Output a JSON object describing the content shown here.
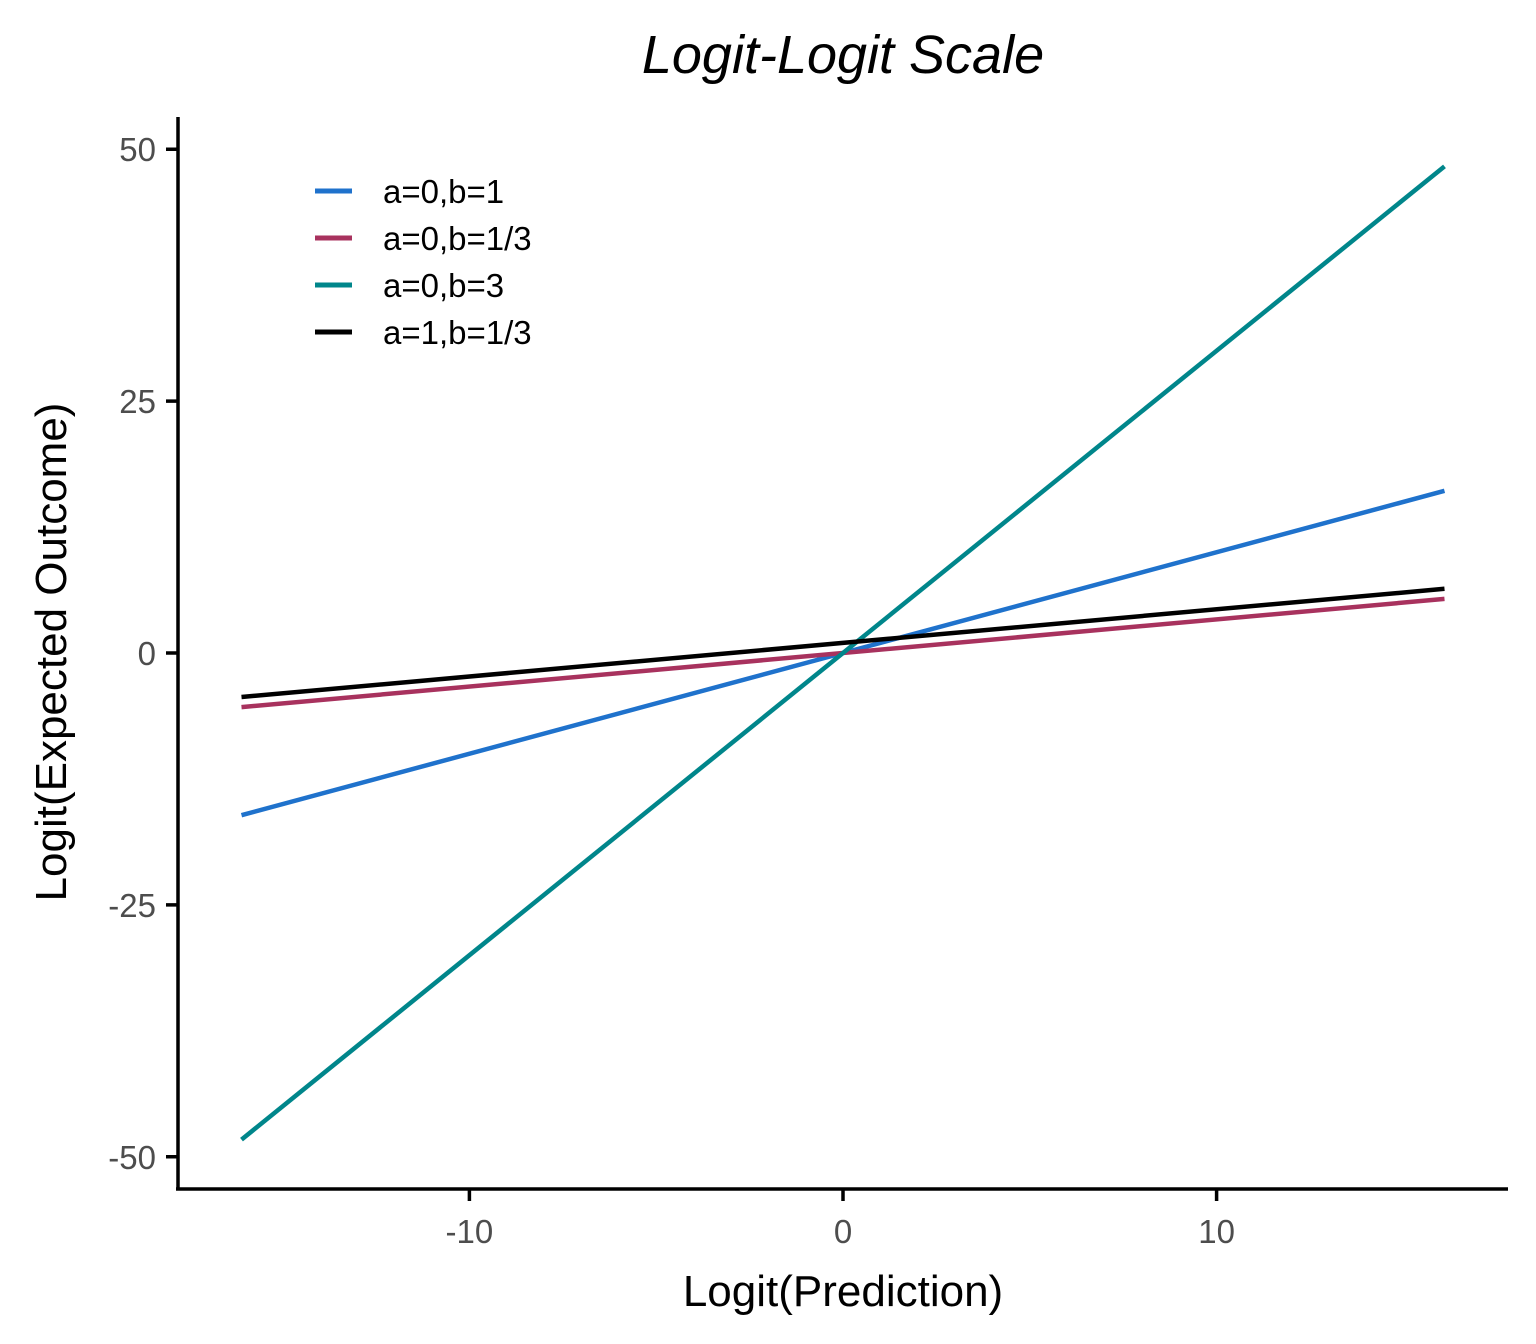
{
  "chart_data": {
    "type": "line",
    "title": "Logit-Logit Scale",
    "xlabel": "Logit(Prediction)",
    "ylabel": "Logit(Expected Outcome)",
    "xlim": [
      -17.8,
      17.8
    ],
    "ylim": [
      -53.2,
      53.2
    ],
    "x_ticks": [
      -10,
      0,
      10
    ],
    "x_tick_labels": [
      "-10",
      "0",
      "10"
    ],
    "y_ticks": [
      -50,
      -25,
      0,
      25,
      50
    ],
    "y_tick_labels": [
      "-50",
      "-25",
      "0",
      "25",
      "50"
    ],
    "grid": false,
    "legend_position": "top-left",
    "series": [
      {
        "name": "a=0,b=1",
        "color": "#1f72cc",
        "x": [
          -16.1,
          16.1
        ],
        "y": [
          -16.1,
          16.1
        ]
      },
      {
        "name": "a=0,b=1/3",
        "color": "#a8325e",
        "x": [
          -16.1,
          16.1
        ],
        "y": [
          -5.37,
          5.37
        ]
      },
      {
        "name": "a=0,b=3",
        "color": "#00868b",
        "x": [
          -16.1,
          16.1
        ],
        "y": [
          -48.3,
          48.3
        ]
      },
      {
        "name": "a=1,b=1/3",
        "color": "#000000",
        "x": [
          -16.1,
          16.1
        ],
        "y": [
          -4.37,
          6.37
        ]
      }
    ]
  }
}
